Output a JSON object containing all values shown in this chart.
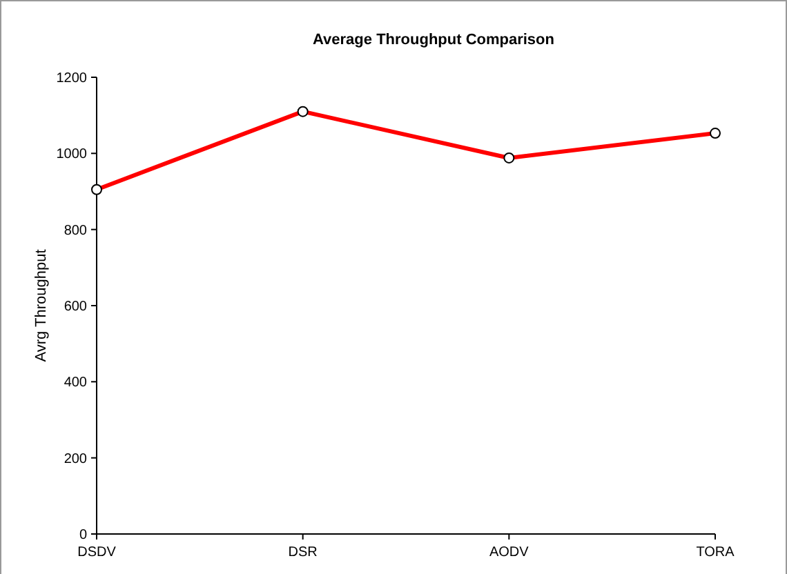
{
  "chart_data": {
    "type": "line",
    "title": "Average Throughput Comparison",
    "ylabel": "Avrg Throughput",
    "categories": [
      "DSDV",
      "DSR",
      "AODV",
      "TORA"
    ],
    "series": [
      {
        "color": "#ff0000",
        "values": [
          905,
          1110,
          988,
          1053
        ]
      }
    ],
    "ylim": [
      0,
      1200
    ],
    "yticks": [
      0,
      200,
      400,
      600,
      800,
      1000,
      1200
    ],
    "grid": false,
    "marker": "circle",
    "line_style": "solid"
  }
}
